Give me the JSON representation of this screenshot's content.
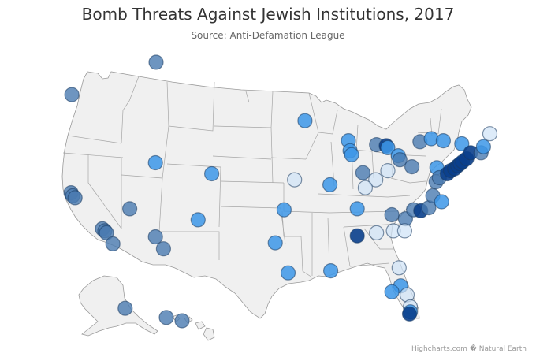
{
  "title": "Bomb Threats Against Jewish Institutions, 2017",
  "subtitle": "Source: Anti-Defamation League",
  "credits": "Highcharts.com � Natural Earth",
  "colors": {
    "land": "#f0f0f0",
    "border": "#9a9a9a",
    "bubble_light": "#cfe3f7",
    "bubble_mid": "#3c96e8",
    "bubble_steel": "#4a7bb0",
    "bubble_dark": "#0a3f8c"
  },
  "map_data": {
    "type": "bubble-map",
    "region": "United States",
    "bubble_shades": [
      "light",
      "mid",
      "steel",
      "dark"
    ],
    "points": [
      {
        "lon": -122.3,
        "lat": 47.6,
        "shade": "steel"
      },
      {
        "lon": -122.4,
        "lat": 37.8,
        "shade": "steel"
      },
      {
        "lon": -122.2,
        "lat": 37.5,
        "shade": "steel"
      },
      {
        "lon": -121.9,
        "lat": 37.3,
        "shade": "steel"
      },
      {
        "lon": -118.5,
        "lat": 34.2,
        "shade": "steel"
      },
      {
        "lon": -118.2,
        "lat": 34.0,
        "shade": "steel"
      },
      {
        "lon": -118.0,
        "lat": 33.8,
        "shade": "steel"
      },
      {
        "lon": -117.2,
        "lat": 32.7,
        "shade": "steel"
      },
      {
        "lon": -115.1,
        "lat": 36.2,
        "shade": "steel"
      },
      {
        "lon": -111.9,
        "lat": 33.4,
        "shade": "steel"
      },
      {
        "lon": -110.9,
        "lat": 32.2,
        "shade": "steel"
      },
      {
        "lon": -111.9,
        "lat": 40.8,
        "shade": "mid"
      },
      {
        "lon": -104.9,
        "lat": 39.7,
        "shade": "mid"
      },
      {
        "lon": -106.6,
        "lat": 35.1,
        "shade": "mid"
      },
      {
        "lon": -93.3,
        "lat": 45.0,
        "shade": "mid"
      },
      {
        "lon": -94.6,
        "lat": 39.1,
        "shade": "light"
      },
      {
        "lon": -90.2,
        "lat": 38.6,
        "shade": "mid"
      },
      {
        "lon": -95.9,
        "lat": 36.1,
        "shade": "mid"
      },
      {
        "lon": -97.0,
        "lat": 32.8,
        "shade": "mid"
      },
      {
        "lon": -95.4,
        "lat": 29.8,
        "shade": "mid"
      },
      {
        "lon": -90.1,
        "lat": 30.0,
        "shade": "mid"
      },
      {
        "lon": -87.9,
        "lat": 43.0,
        "shade": "mid"
      },
      {
        "lon": -87.7,
        "lat": 42.0,
        "shade": "mid"
      },
      {
        "lon": -87.5,
        "lat": 41.6,
        "shade": "mid"
      },
      {
        "lon": -86.1,
        "lat": 39.8,
        "shade": "steel"
      },
      {
        "lon": -84.4,
        "lat": 42.6,
        "shade": "steel"
      },
      {
        "lon": -83.2,
        "lat": 42.5,
        "shade": "dark"
      },
      {
        "lon": -83.0,
        "lat": 42.3,
        "shade": "mid"
      },
      {
        "lon": -81.7,
        "lat": 41.5,
        "shade": "mid"
      },
      {
        "lon": -81.5,
        "lat": 41.1,
        "shade": "steel"
      },
      {
        "lon": -83.0,
        "lat": 40.0,
        "shade": "light"
      },
      {
        "lon": -84.5,
        "lat": 39.1,
        "shade": "light"
      },
      {
        "lon": -85.8,
        "lat": 38.3,
        "shade": "light"
      },
      {
        "lon": -86.8,
        "lat": 36.2,
        "shade": "mid"
      },
      {
        "lon": -86.8,
        "lat": 33.5,
        "shade": "dark"
      },
      {
        "lon": -84.4,
        "lat": 33.8,
        "shade": "light"
      },
      {
        "lon": -82.5,
        "lat": 35.6,
        "shade": "steel"
      },
      {
        "lon": -80.8,
        "lat": 35.2,
        "shade": "steel"
      },
      {
        "lon": -79.8,
        "lat": 36.1,
        "shade": "steel"
      },
      {
        "lon": -78.9,
        "lat": 36.0,
        "shade": "dark"
      },
      {
        "lon": -77.9,
        "lat": 36.3,
        "shade": "steel"
      },
      {
        "lon": -82.3,
        "lat": 34.0,
        "shade": "light"
      },
      {
        "lon": -80.9,
        "lat": 34.0,
        "shade": "light"
      },
      {
        "lon": -80.0,
        "lat": 40.4,
        "shade": "steel"
      },
      {
        "lon": -79.0,
        "lat": 42.9,
        "shade": "steel"
      },
      {
        "lon": -77.6,
        "lat": 43.2,
        "shade": "mid"
      },
      {
        "lon": -76.1,
        "lat": 43.0,
        "shade": "mid"
      },
      {
        "lon": -73.8,
        "lat": 42.7,
        "shade": "mid"
      },
      {
        "lon": -76.9,
        "lat": 40.3,
        "shade": "mid"
      },
      {
        "lon": -77.0,
        "lat": 38.9,
        "shade": "steel"
      },
      {
        "lon": -76.6,
        "lat": 39.3,
        "shade": "steel"
      },
      {
        "lon": -75.6,
        "lat": 39.7,
        "shade": "dark"
      },
      {
        "lon": -75.2,
        "lat": 40.0,
        "shade": "dark"
      },
      {
        "lon": -74.7,
        "lat": 40.2,
        "shade": "dark"
      },
      {
        "lon": -74.3,
        "lat": 40.5,
        "shade": "dark"
      },
      {
        "lon": -74.0,
        "lat": 40.7,
        "shade": "dark"
      },
      {
        "lon": -73.7,
        "lat": 40.9,
        "shade": "dark"
      },
      {
        "lon": -73.2,
        "lat": 41.2,
        "shade": "dark"
      },
      {
        "lon": -72.7,
        "lat": 41.8,
        "shade": "dark"
      },
      {
        "lon": -71.4,
        "lat": 41.8,
        "shade": "steel"
      },
      {
        "lon": -71.1,
        "lat": 42.4,
        "shade": "mid"
      },
      {
        "lon": -70.3,
        "lat": 43.7,
        "shade": "light"
      },
      {
        "lon": -77.4,
        "lat": 37.5,
        "shade": "steel"
      },
      {
        "lon": -76.3,
        "lat": 36.9,
        "shade": "mid"
      },
      {
        "lon": -81.6,
        "lat": 30.3,
        "shade": "light"
      },
      {
        "lon": -81.4,
        "lat": 28.5,
        "shade": "mid"
      },
      {
        "lon": -82.5,
        "lat": 27.9,
        "shade": "mid"
      },
      {
        "lon": -80.6,
        "lat": 27.6,
        "shade": "light"
      },
      {
        "lon": -80.2,
        "lat": 26.4,
        "shade": "light"
      },
      {
        "lon": -80.2,
        "lat": 25.9,
        "shade": "mid"
      },
      {
        "lon": -80.3,
        "lat": 25.7,
        "shade": "dark"
      }
    ],
    "alaska_points": [
      {
        "lon": -149.9,
        "lat": 61.2,
        "shade": "steel"
      },
      {
        "lon": -135.0,
        "lat": 58.3,
        "shade": "steel"
      }
    ],
    "hawaii_points": [
      {
        "lon": -157.9,
        "lat": 21.3,
        "shade": "steel"
      }
    ]
  }
}
